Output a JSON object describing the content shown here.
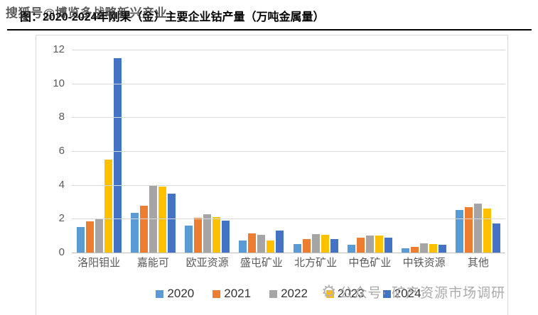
{
  "watermark_top": "搜狐号@博览多战略新兴产业",
  "title": "图：2020-2024年刚果（金）主要企业钴产量（万吨金属量）",
  "watermark_bottom": {
    "icon": "gear-icon",
    "icon_glyph": "⚙",
    "text": "公众号· 矿产资源市场调研"
  },
  "chart_data": {
    "type": "bar",
    "title": "2020-2024年刚果（金）主要企业钴产量（万吨金属量）",
    "categories": [
      "洛阳钼业",
      "嘉能可",
      "欧亚资源",
      "盛屯矿业",
      "北方矿业",
      "中色矿业",
      "中铁资源",
      "其他"
    ],
    "series": [
      {
        "name": "2020",
        "color": "#5B9BD5",
        "values": [
          1.5,
          2.35,
          1.6,
          0.7,
          0.5,
          0.45,
          0.25,
          2.5
        ]
      },
      {
        "name": "2021",
        "color": "#ED7D31",
        "values": [
          1.85,
          2.75,
          2.05,
          1.15,
          0.8,
          0.9,
          0.35,
          2.7
        ]
      },
      {
        "name": "2022",
        "color": "#A5A5A5",
        "values": [
          2.0,
          3.95,
          2.25,
          1.05,
          1.1,
          1.0,
          0.55,
          2.9
        ]
      },
      {
        "name": "2023",
        "color": "#FFC000",
        "values": [
          5.5,
          3.9,
          2.1,
          0.7,
          1.05,
          1.0,
          0.5,
          2.6
        ]
      },
      {
        "name": "2024",
        "color": "#4472C4",
        "values": [
          11.5,
          3.5,
          1.9,
          1.3,
          0.8,
          0.9,
          0.45,
          1.7
        ]
      }
    ],
    "xlabel": "",
    "ylabel": "",
    "ylim": [
      0,
      12
    ],
    "yticks": [
      0,
      2,
      4,
      6,
      8,
      10,
      12
    ],
    "grid": true,
    "legend_position": "bottom"
  }
}
